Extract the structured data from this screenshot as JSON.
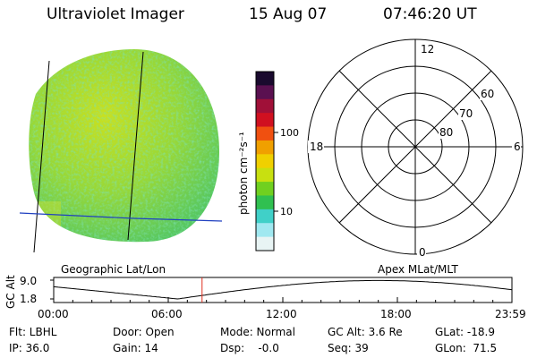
{
  "header": {
    "instrument": "Ultraviolet Imager",
    "date": "15 Aug 07",
    "time": "07:46:20 UT"
  },
  "colorbar": {
    "unit_label": "photon cm⁻²s⁻¹",
    "ticks": [
      "100",
      "10"
    ],
    "colors": [
      "#1a0a2e",
      "#5a1050",
      "#a01038",
      "#d01020",
      "#f05010",
      "#f0a000",
      "#f0d000",
      "#c8e010",
      "#70d020",
      "#30c050",
      "#40d0c8",
      "#a0e8f0",
      "#e8f4f4"
    ]
  },
  "polar_plot": {
    "mlt_labels": {
      "top": "12",
      "right": "6",
      "bottom": "0",
      "left": "18"
    },
    "lat_labels": [
      "60",
      "70",
      "80"
    ]
  },
  "projection_labels": {
    "left": "Geographic Lat/Lon",
    "right": "Apex MLat/MLT"
  },
  "altitude_plot": {
    "ylabel": "GC Alt",
    "yticks": [
      "9.0",
      "1.8"
    ],
    "xticks": [
      "00:00",
      "06:00",
      "12:00",
      "18:00",
      "23:59"
    ],
    "marker_color": "#e03020",
    "current_time_hours": 7.77
  },
  "footer": {
    "flt": "Flt: LBHL",
    "ip": "IP: 36.0",
    "door": "Door: Open",
    "gain": "Gain: 14",
    "mode": "Mode: Normal",
    "dsp": "Dsp:    -0.0",
    "gc_alt": "GC Alt: 3.6 Re",
    "seq": "Seq: 39",
    "glat": "GLat: -18.9",
    "glon": "GLon:  71.5"
  }
}
